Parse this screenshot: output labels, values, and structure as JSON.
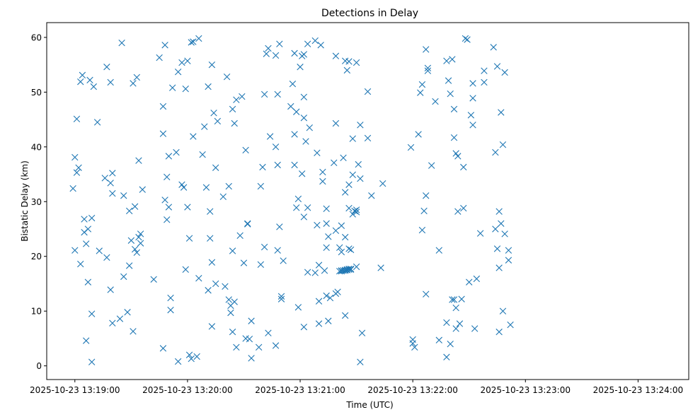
{
  "chart_data": {
    "type": "scatter",
    "title": "Detections in Delay",
    "xlabel": "Time (UTC)",
    "ylabel": "Bistatic Delay (km)",
    "marker": "x",
    "color": "#1f77b4",
    "grid": false,
    "legend": "none",
    "date": "2025-10-23",
    "xlim_seconds_utc": [
      "13:18:45",
      "13:24:27"
    ],
    "ylim": [
      -2.5,
      62.7
    ],
    "x_ticks": [
      "2025-10-23 13:19:00",
      "2025-10-23 13:20:00",
      "2025-10-23 13:21:00",
      "2025-10-23 13:22:00",
      "2025-10-23 13:23:00",
      "2025-10-23 13:24:00"
    ],
    "y_ticks": [
      "0",
      "10",
      "20",
      "30",
      "40",
      "50",
      "60"
    ],
    "points": [
      [
        "13:18:59",
        32.4
      ],
      [
        "13:19:00",
        38.1
      ],
      [
        "13:19:00",
        21.1
      ],
      [
        "13:19:01",
        45.1
      ],
      [
        "13:19:01",
        35.3
      ],
      [
        "13:19:02",
        36.2
      ],
      [
        "13:19:03",
        18.6
      ],
      [
        "13:19:03",
        51.9
      ],
      [
        "13:19:04",
        53.1
      ],
      [
        "13:19:05",
        24.4
      ],
      [
        "13:19:05",
        26.8
      ],
      [
        "13:19:06",
        22.3
      ],
      [
        "13:19:06",
        4.6
      ],
      [
        "13:19:07",
        15.3
      ],
      [
        "13:19:07",
        25.0
      ],
      [
        "13:19:08",
        52.2
      ],
      [
        "13:19:09",
        27.0
      ],
      [
        "13:19:09",
        0.7
      ],
      [
        "13:19:09",
        9.5
      ],
      [
        "13:19:10",
        51.0
      ],
      [
        "13:19:12",
        44.5
      ],
      [
        "13:19:13",
        21.0
      ],
      [
        "13:19:16",
        34.3
      ],
      [
        "13:19:17",
        54.6
      ],
      [
        "13:19:17",
        19.8
      ],
      [
        "13:19:19",
        33.4
      ],
      [
        "13:19:19",
        13.9
      ],
      [
        "13:19:19",
        51.8
      ],
      [
        "13:19:20",
        35.2
      ],
      [
        "13:19:20",
        31.5
      ],
      [
        "13:19:20",
        7.8
      ],
      [
        "13:19:24",
        8.6
      ],
      [
        "13:19:25",
        59.0
      ],
      [
        "13:19:26",
        16.3
      ],
      [
        "13:19:26",
        31.1
      ],
      [
        "13:19:28",
        9.8
      ],
      [
        "13:19:29",
        18.3
      ],
      [
        "13:19:29",
        28.3
      ],
      [
        "13:19:30",
        22.9
      ],
      [
        "13:19:31",
        51.6
      ],
      [
        "13:19:31",
        6.3
      ],
      [
        "13:19:32",
        21.3
      ],
      [
        "13:19:32",
        29.1
      ],
      [
        "13:19:33",
        52.7
      ],
      [
        "13:19:33",
        20.7
      ],
      [
        "13:19:34",
        37.5
      ],
      [
        "13:19:34",
        23.5
      ],
      [
        "13:19:35",
        22.4
      ],
      [
        "13:19:35",
        24.1
      ],
      [
        "13:19:36",
        32.2
      ],
      [
        "13:19:42",
        15.8
      ],
      [
        "13:19:45",
        56.3
      ],
      [
        "13:19:47",
        47.4
      ],
      [
        "13:19:47",
        42.4
      ],
      [
        "13:19:47",
        3.2
      ],
      [
        "13:19:48",
        30.3
      ],
      [
        "13:19:48",
        58.6
      ],
      [
        "13:19:49",
        26.7
      ],
      [
        "13:19:49",
        34.5
      ],
      [
        "13:19:50",
        29.0
      ],
      [
        "13:19:50",
        38.3
      ],
      [
        "13:19:51",
        12.4
      ],
      [
        "13:19:51",
        10.2
      ],
      [
        "13:19:52",
        50.8
      ],
      [
        "13:19:54",
        39.0
      ],
      [
        "13:19:55",
        0.8
      ],
      [
        "13:19:55",
        53.7
      ],
      [
        "13:19:57",
        33.1
      ],
      [
        "13:19:57",
        55.4
      ],
      [
        "13:19:58",
        32.6
      ],
      [
        "13:19:59",
        17.6
      ],
      [
        "13:19:59",
        50.6
      ],
      [
        "13:20:00",
        55.7
      ],
      [
        "13:20:00",
        29.0
      ],
      [
        "13:20:01",
        23.3
      ],
      [
        "13:20:01",
        2.0
      ],
      [
        "13:20:02",
        1.3
      ],
      [
        "13:20:02",
        59.1
      ],
      [
        "13:20:03",
        59.2
      ],
      [
        "13:20:03",
        41.9
      ],
      [
        "13:20:05",
        1.7
      ],
      [
        "13:20:06",
        59.8
      ],
      [
        "13:20:06",
        16.0
      ],
      [
        "13:20:08",
        38.6
      ],
      [
        "13:20:09",
        43.7
      ],
      [
        "13:20:10",
        32.6
      ],
      [
        "13:20:11",
        13.8
      ],
      [
        "13:20:11",
        51.0
      ],
      [
        "13:20:12",
        28.2
      ],
      [
        "13:20:12",
        23.3
      ],
      [
        "13:20:13",
        55.0
      ],
      [
        "13:20:13",
        7.2
      ],
      [
        "13:20:13",
        18.9
      ],
      [
        "13:20:14",
        46.2
      ],
      [
        "13:20:15",
        36.2
      ],
      [
        "13:20:15",
        15.0
      ],
      [
        "13:20:16",
        44.7
      ],
      [
        "13:20:19",
        30.9
      ],
      [
        "13:20:20",
        14.5
      ],
      [
        "13:20:21",
        52.8
      ],
      [
        "13:20:22",
        32.8
      ],
      [
        "13:20:22",
        12.1
      ],
      [
        "13:20:23",
        9.7
      ],
      [
        "13:20:23",
        11.0
      ],
      [
        "13:20:24",
        21.0
      ],
      [
        "13:20:24",
        6.2
      ],
      [
        "13:20:24",
        46.9
      ],
      [
        "13:20:25",
        11.7
      ],
      [
        "13:20:25",
        44.3
      ],
      [
        "13:20:26",
        48.6
      ],
      [
        "13:20:26",
        3.4
      ],
      [
        "13:20:28",
        23.8
      ],
      [
        "13:20:29",
        49.2
      ],
      [
        "13:20:30",
        18.8
      ],
      [
        "13:20:31",
        5.0
      ],
      [
        "13:20:31",
        39.4
      ],
      [
        "13:20:32",
        26.0
      ],
      [
        "13:20:32",
        25.9
      ],
      [
        "13:20:33",
        4.9
      ],
      [
        "13:20:34",
        1.4
      ],
      [
        "13:20:34",
        8.2
      ],
      [
        "13:20:38",
        3.4
      ],
      [
        "13:20:39",
        18.5
      ],
      [
        "13:20:39",
        32.8
      ],
      [
        "13:20:40",
        36.3
      ],
      [
        "13:20:41",
        21.7
      ],
      [
        "13:20:41",
        49.6
      ],
      [
        "13:20:42",
        57.0
      ],
      [
        "13:20:43",
        6.0
      ],
      [
        "13:20:43",
        58.0
      ],
      [
        "13:20:44",
        41.9
      ],
      [
        "13:20:47",
        56.7
      ],
      [
        "13:20:47",
        40.0
      ],
      [
        "13:20:47",
        3.7
      ],
      [
        "13:20:48",
        49.6
      ],
      [
        "13:20:48",
        21.1
      ],
      [
        "13:20:48",
        36.7
      ],
      [
        "13:20:49",
        25.4
      ],
      [
        "13:20:49",
        58.8
      ],
      [
        "13:20:50",
        12.7
      ],
      [
        "13:20:50",
        12.2
      ],
      [
        "13:20:51",
        19.2
      ],
      [
        "13:20:55",
        47.4
      ],
      [
        "13:20:56",
        51.5
      ],
      [
        "13:20:57",
        36.7
      ],
      [
        "13:20:57",
        42.3
      ],
      [
        "13:20:57",
        57.1
      ],
      [
        "13:20:58",
        46.4
      ],
      [
        "13:20:58",
        28.9
      ],
      [
        "13:20:59",
        30.5
      ],
      [
        "13:20:59",
        10.7
      ],
      [
        "13:21:00",
        54.6
      ],
      [
        "13:21:01",
        35.1
      ],
      [
        "13:21:01",
        56.6
      ],
      [
        "13:21:02",
        56.9
      ],
      [
        "13:21:02",
        45.3
      ],
      [
        "13:21:02",
        49.1
      ],
      [
        "13:21:02",
        7.1
      ],
      [
        "13:21:02",
        27.2
      ],
      [
        "13:21:03",
        41.0
      ],
      [
        "13:21:04",
        58.8
      ],
      [
        "13:21:04",
        17.1
      ],
      [
        "13:21:04",
        28.9
      ],
      [
        "13:21:05",
        43.5
      ],
      [
        "13:21:08",
        17.0
      ],
      [
        "13:21:08",
        59.4
      ],
      [
        "13:21:09",
        25.7
      ],
      [
        "13:21:09",
        38.9
      ],
      [
        "13:21:10",
        7.7
      ],
      [
        "13:21:10",
        11.8
      ],
      [
        "13:21:10",
        18.4
      ],
      [
        "13:21:11",
        58.6
      ],
      [
        "13:21:12",
        33.7
      ],
      [
        "13:21:12",
        35.4
      ],
      [
        "13:21:13",
        17.4
      ],
      [
        "13:21:14",
        28.7
      ],
      [
        "13:21:14",
        26.0
      ],
      [
        "13:21:14",
        21.6
      ],
      [
        "13:21:14",
        12.8
      ],
      [
        "13:21:15",
        8.2
      ],
      [
        "13:21:15",
        23.6
      ],
      [
        "13:21:16",
        12.4
      ],
      [
        "13:21:18",
        37.1
      ],
      [
        "13:21:19",
        56.6
      ],
      [
        "13:21:19",
        44.3
      ],
      [
        "13:21:19",
        13.2
      ],
      [
        "13:21:19",
        24.7
      ],
      [
        "13:21:20",
        13.5
      ],
      [
        "13:21:21",
        17.3
      ],
      [
        "13:21:21",
        21.6
      ],
      [
        "13:21:22",
        25.6
      ],
      [
        "13:21:22",
        20.8
      ],
      [
        "13:21:22",
        17.4
      ],
      [
        "13:21:22",
        17.3
      ],
      [
        "13:21:23",
        38.0
      ],
      [
        "13:21:23",
        17.4
      ],
      [
        "13:21:23",
        17.4
      ],
      [
        "13:21:24",
        9.2
      ],
      [
        "13:21:24",
        31.7
      ],
      [
        "13:21:24",
        17.5
      ],
      [
        "13:21:24",
        23.5
      ],
      [
        "13:21:24",
        17.4
      ],
      [
        "13:21:24",
        55.7
      ],
      [
        "13:21:25",
        54.0
      ],
      [
        "13:21:25",
        17.6
      ],
      [
        "13:21:25",
        17.6
      ],
      [
        "13:21:25",
        17.5
      ],
      [
        "13:21:26",
        28.8
      ],
      [
        "13:21:26",
        33.1
      ],
      [
        "13:21:26",
        55.6
      ],
      [
        "13:21:26",
        21.4
      ],
      [
        "13:21:26",
        17.6
      ],
      [
        "13:21:26",
        17.7
      ],
      [
        "13:21:27",
        17.7
      ],
      [
        "13:21:27",
        17.6
      ],
      [
        "13:21:27",
        21.2
      ],
      [
        "13:21:28",
        34.9
      ],
      [
        "13:21:28",
        41.5
      ],
      [
        "13:21:28",
        27.7
      ],
      [
        "13:21:29",
        28.3
      ],
      [
        "13:21:30",
        28.5
      ],
      [
        "13:21:30",
        55.4
      ],
      [
        "13:21:30",
        18.1
      ],
      [
        "13:21:30",
        28.1
      ],
      [
        "13:21:31",
        36.8
      ],
      [
        "13:21:32",
        44.0
      ],
      [
        "13:21:32",
        34.2
      ],
      [
        "13:21:32",
        0.7
      ],
      [
        "13:21:33",
        6.0
      ],
      [
        "13:21:36",
        50.1
      ],
      [
        "13:21:36",
        41.6
      ],
      [
        "13:21:38",
        31.1
      ],
      [
        "13:21:43",
        17.9
      ],
      [
        "13:21:44",
        33.3
      ],
      [
        "13:21:59",
        39.9
      ],
      [
        "13:22:00",
        4.1
      ],
      [
        "13:22:00",
        4.8
      ],
      [
        "13:22:01",
        3.4
      ],
      [
        "13:22:03",
        42.3
      ],
      [
        "13:22:04",
        49.9
      ],
      [
        "13:22:05",
        51.4
      ],
      [
        "13:22:05",
        24.8
      ],
      [
        "13:22:06",
        28.3
      ],
      [
        "13:22:07",
        31.1
      ],
      [
        "13:22:07",
        13.1
      ],
      [
        "13:22:07",
        57.8
      ],
      [
        "13:22:08",
        53.9
      ],
      [
        "13:22:08",
        54.4
      ],
      [
        "13:22:10",
        36.6
      ],
      [
        "13:22:12",
        48.3
      ],
      [
        "13:22:14",
        4.7
      ],
      [
        "13:22:14",
        21.1
      ],
      [
        "13:22:18",
        1.6
      ],
      [
        "13:22:18",
        55.7
      ],
      [
        "13:22:18",
        7.9
      ],
      [
        "13:22:19",
        52.1
      ],
      [
        "13:22:20",
        4.0
      ],
      [
        "13:22:20",
        49.7
      ],
      [
        "13:22:21",
        56.0
      ],
      [
        "13:22:21",
        12.1
      ],
      [
        "13:22:22",
        41.7
      ],
      [
        "13:22:22",
        12.1
      ],
      [
        "13:22:22",
        46.9
      ],
      [
        "13:22:23",
        6.8
      ],
      [
        "13:22:23",
        10.6
      ],
      [
        "13:22:23",
        38.8
      ],
      [
        "13:22:24",
        38.3
      ],
      [
        "13:22:24",
        28.2
      ],
      [
        "13:22:25",
        7.7
      ],
      [
        "13:22:26",
        12.2
      ],
      [
        "13:22:27",
        36.3
      ],
      [
        "13:22:27",
        28.8
      ],
      [
        "13:22:28",
        59.8
      ],
      [
        "13:22:29",
        59.6
      ],
      [
        "13:22:30",
        15.3
      ],
      [
        "13:22:31",
        45.8
      ],
      [
        "13:22:32",
        48.9
      ],
      [
        "13:22:32",
        44.0
      ],
      [
        "13:22:32",
        51.6
      ],
      [
        "13:22:33",
        6.8
      ],
      [
        "13:22:34",
        15.9
      ],
      [
        "13:22:36",
        24.2
      ],
      [
        "13:22:38",
        53.9
      ],
      [
        "13:22:38",
        51.8
      ],
      [
        "13:22:43",
        58.2
      ],
      [
        "13:22:44",
        39.0
      ],
      [
        "13:22:44",
        25.0
      ],
      [
        "13:22:45",
        54.7
      ],
      [
        "13:22:45",
        21.4
      ],
      [
        "13:22:46",
        17.9
      ],
      [
        "13:22:46",
        6.2
      ],
      [
        "13:22:46",
        28.2
      ],
      [
        "13:22:47",
        26.0
      ],
      [
        "13:22:47",
        46.3
      ],
      [
        "13:22:48",
        40.4
      ],
      [
        "13:22:48",
        10.0
      ],
      [
        "13:22:49",
        24.1
      ],
      [
        "13:22:49",
        53.6
      ],
      [
        "13:22:51",
        21.1
      ],
      [
        "13:22:51",
        19.3
      ],
      [
        "13:22:52",
        7.5
      ]
    ]
  }
}
